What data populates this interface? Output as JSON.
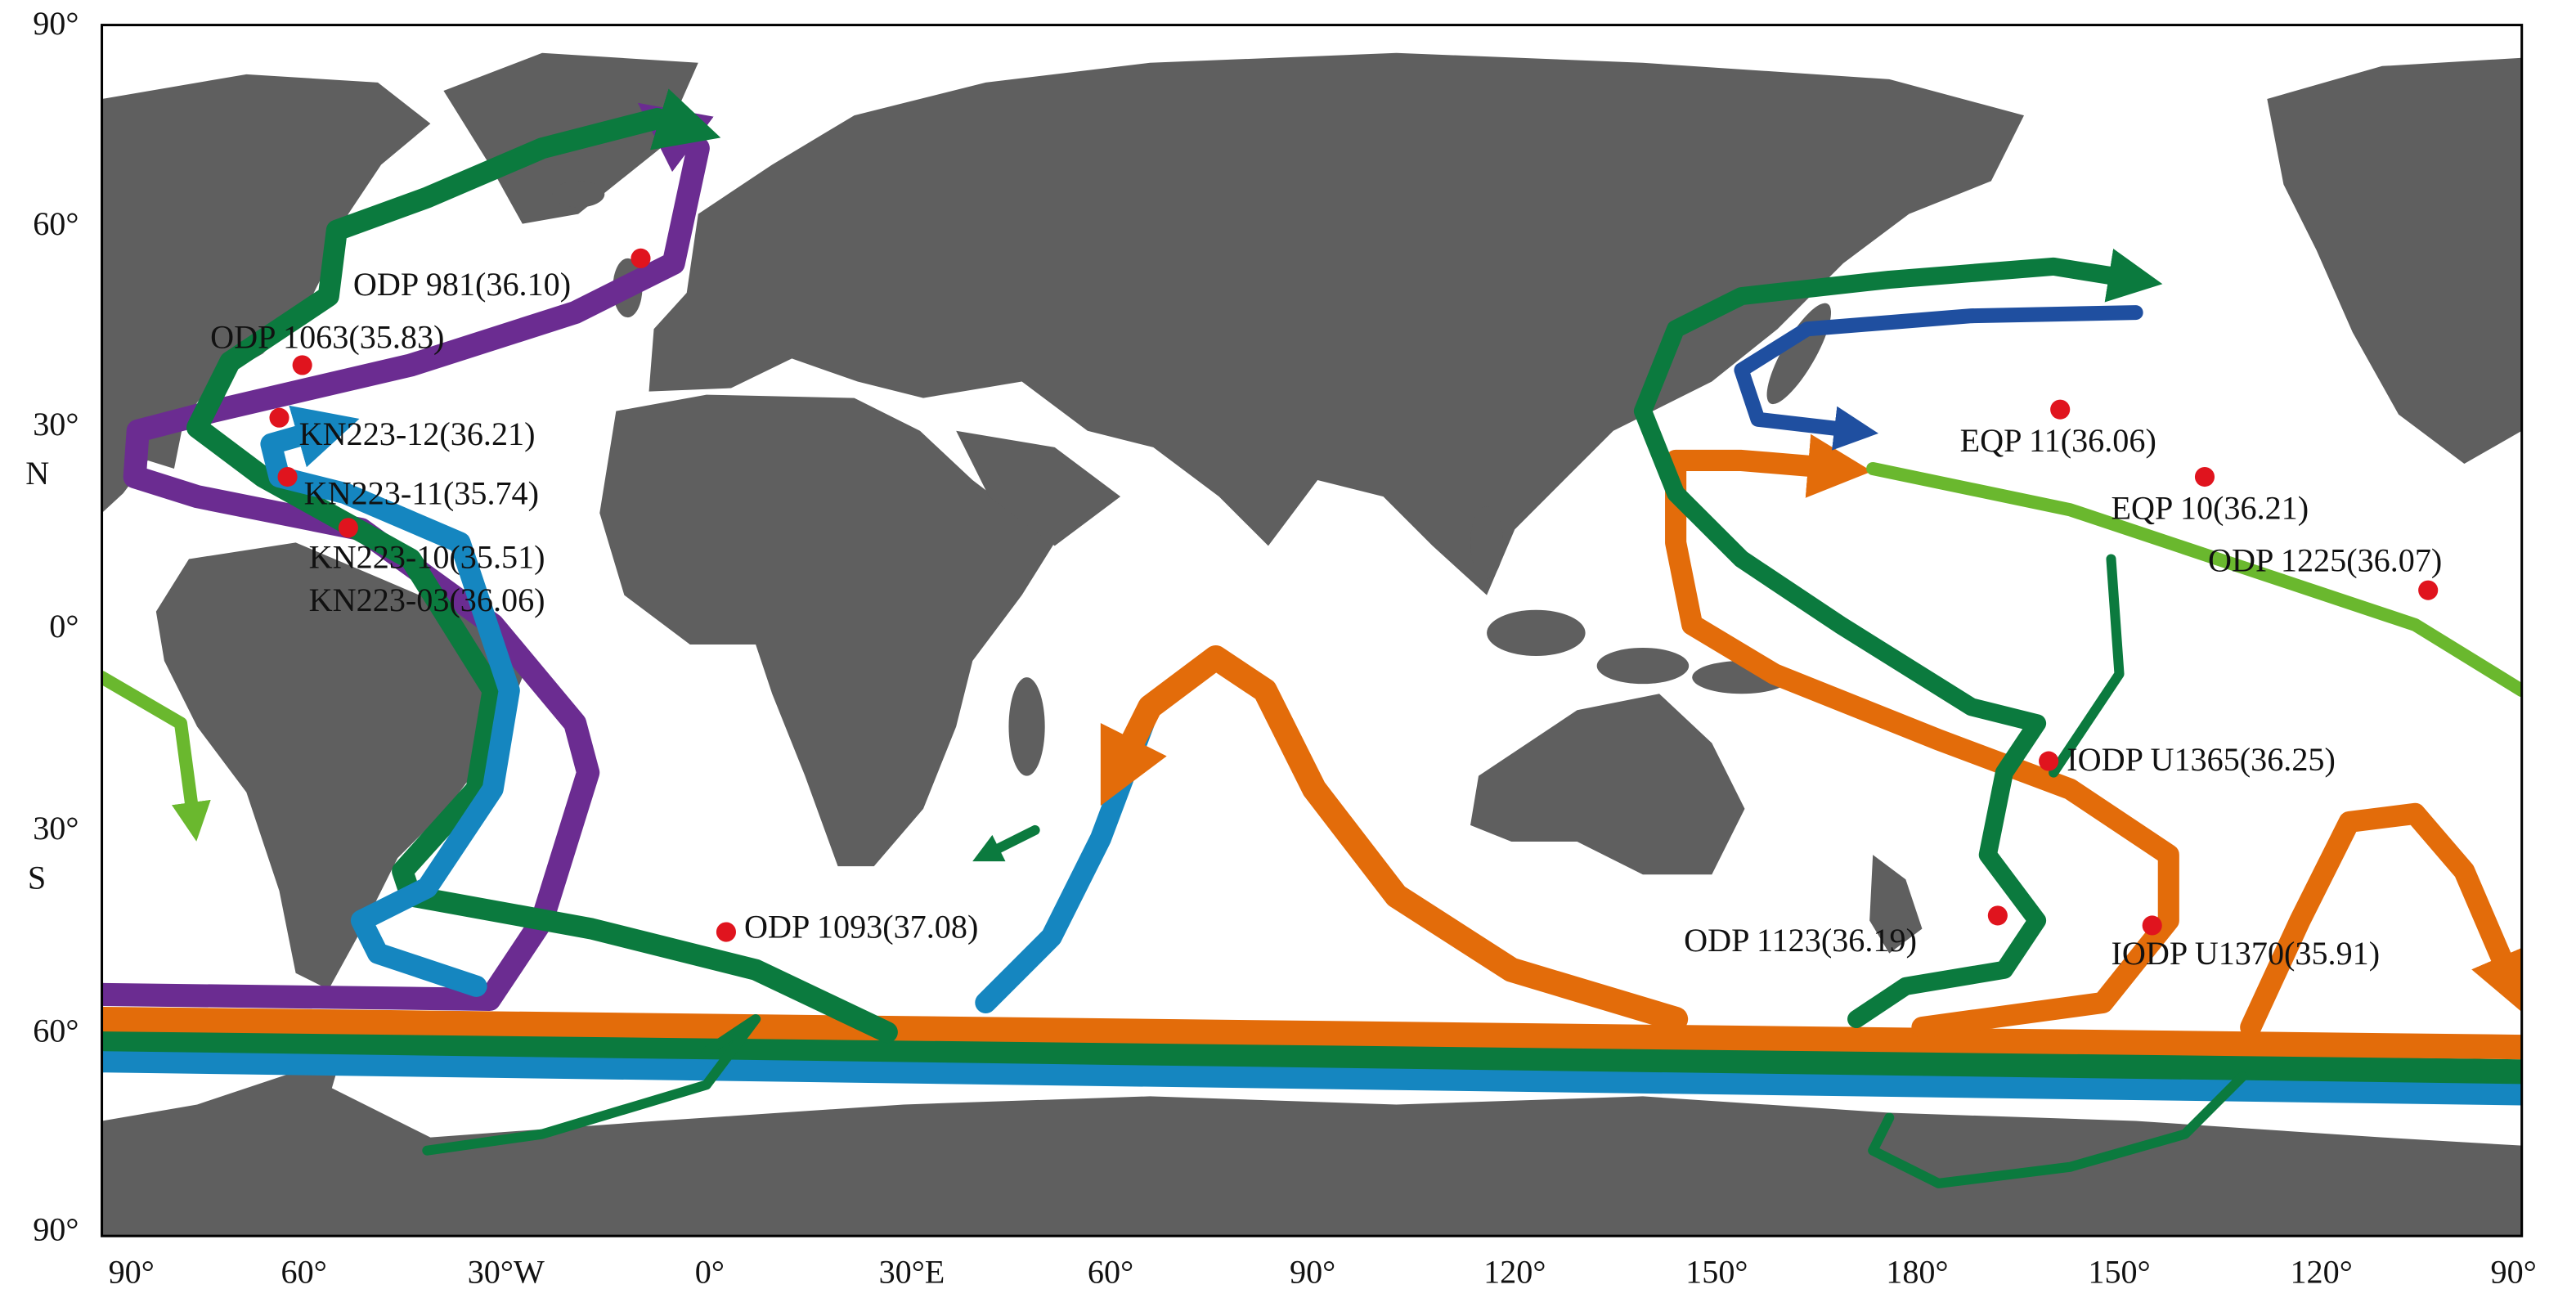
{
  "map": {
    "lat_labels": [
      "90°",
      "60°",
      "30°",
      "N",
      "0°",
      "30°",
      "S",
      "60°",
      "90°"
    ],
    "lon_labels": [
      "90°",
      "60°",
      "30°W",
      "0°",
      "30°E",
      "60°",
      "90°",
      "120°",
      "150°",
      "180°",
      "150°",
      "120°",
      "90°"
    ],
    "sites": [
      {
        "label": "ODP 981(36.10)"
      },
      {
        "label": "ODP 1063(35.83)"
      },
      {
        "label": "KN223-12(36.21)"
      },
      {
        "label": "KN223-11(35.74)"
      },
      {
        "label": "KN223-10(35.51)"
      },
      {
        "label": "KN223-03(36.06)"
      },
      {
        "label": "EQP 11(36.06)"
      },
      {
        "label": "EQP 10(36.21)"
      },
      {
        "label": "ODP 1225(36.07)"
      },
      {
        "label": "IODP U1365(36.25)"
      },
      {
        "label": "ODP 1093(37.08)"
      },
      {
        "label": "ODP 1123(36.19)"
      },
      {
        "label": "IODP U1370(35.91)"
      }
    ]
  }
}
